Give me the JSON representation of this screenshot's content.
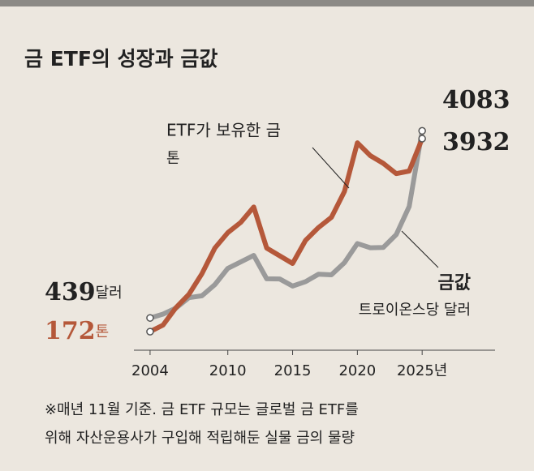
{
  "chart_data": {
    "type": "line",
    "title": "금 ETF의 성장과 금값",
    "x": [
      2004,
      2005,
      2006,
      2007,
      2008,
      2009,
      2010,
      2011,
      2012,
      2013,
      2014,
      2015,
      2016,
      2017,
      2018,
      2019,
      2020,
      2021,
      2022,
      2023,
      2024,
      2025
    ],
    "xlim": [
      2002,
      2030
    ],
    "xticks": [
      2004,
      2010,
      2015,
      2020,
      {
        "value": 2025,
        "label": "2025년"
      }
    ],
    "ylim": [
      0,
      4500
    ],
    "y2lim": [
      0,
      4500
    ],
    "series": [
      {
        "name": "ETF가 보유한 금",
        "unit_note": "톤",
        "unit": "톤",
        "color": "#b5583a",
        "values": [
          172,
          300,
          640,
          900,
          1300,
          1800,
          2100,
          2300,
          2600,
          1800,
          1650,
          1500,
          1950,
          2200,
          2400,
          2900,
          3850,
          3600,
          3450,
          3250,
          3300,
          3932
        ]
      },
      {
        "name": "금값",
        "unit_note": "트로이온스당 달러",
        "unit": "달러",
        "color": "#9a9a9a",
        "axis": "y2",
        "values": [
          439,
          513,
          632,
          834,
          870,
          1087,
          1405,
          1531,
          1657,
          1202,
          1199,
          1060,
          1146,
          1291,
          1279,
          1515,
          1888,
          1806,
          1812,
          2062,
          2610,
          4083
        ]
      }
    ],
    "note": [
      "※매년 11월 기준. 금 ETF 규모는 글로벌 금 ETF를",
      "위해 자산운용사가 구입해 적립해둔 실물 금의 물량"
    ]
  }
}
